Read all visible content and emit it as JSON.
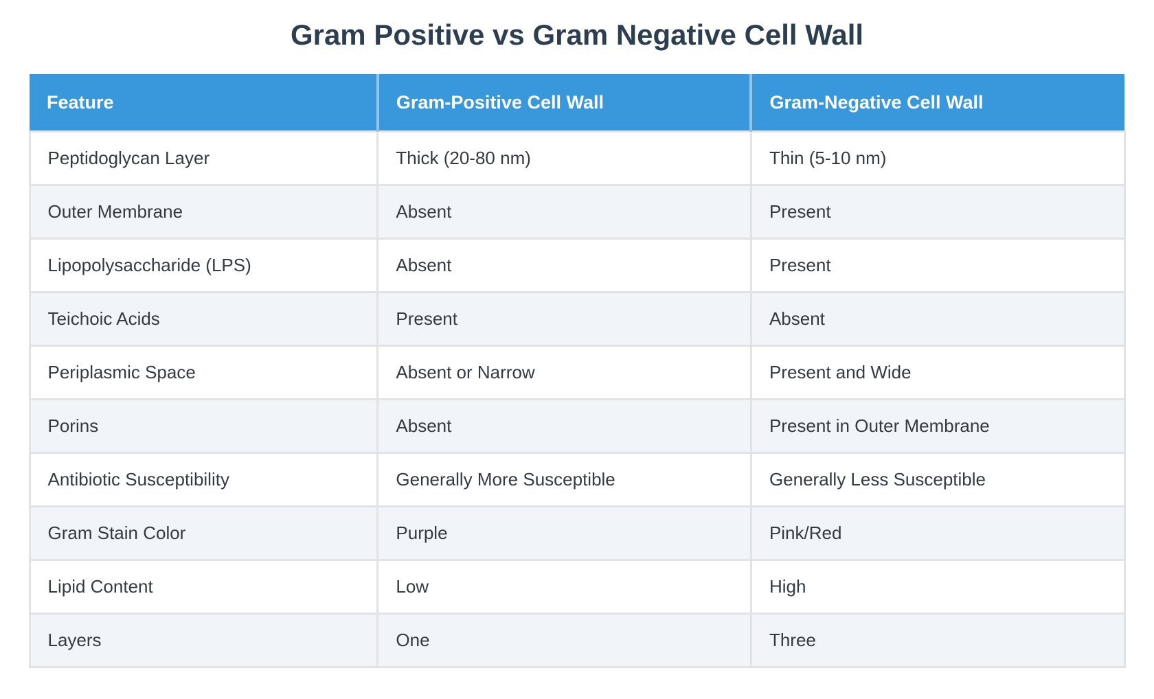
{
  "page": {
    "title": "Gram Positive vs Gram Negative Cell Wall",
    "background_color": "#ffffff"
  },
  "colors": {
    "title_text": "#2c3e50",
    "header_background": "#3998db",
    "header_text": "#ffffff",
    "body_text": "#343a40",
    "row_even_background": "#f1f5f9",
    "row_odd_background": "#ffffff",
    "border": "#e1e3e6"
  },
  "table": {
    "headers": [
      "Feature",
      "Gram-Positive Cell Wall",
      "Gram-Negative Cell Wall"
    ],
    "rows": [
      {
        "feature": "Peptidoglycan Layer",
        "gram_positive": "Thick (20-80 nm)",
        "gram_negative": "Thin (5-10 nm)"
      },
      {
        "feature": "Outer Membrane",
        "gram_positive": "Absent",
        "gram_negative": "Present"
      },
      {
        "feature": "Lipopolysaccharide (LPS)",
        "gram_positive": "Absent",
        "gram_negative": "Present"
      },
      {
        "feature": "Teichoic Acids",
        "gram_positive": "Present",
        "gram_negative": "Absent"
      },
      {
        "feature": "Periplasmic Space",
        "gram_positive": "Absent or Narrow",
        "gram_negative": "Present and Wide"
      },
      {
        "feature": "Porins",
        "gram_positive": "Absent",
        "gram_negative": "Present in Outer Membrane"
      },
      {
        "feature": "Antibiotic Susceptibility",
        "gram_positive": "Generally More Susceptible",
        "gram_negative": "Generally Less Susceptible"
      },
      {
        "feature": "Gram Stain Color",
        "gram_positive": "Purple",
        "gram_negative": "Pink/Red"
      },
      {
        "feature": "Lipid Content",
        "gram_positive": "Low",
        "gram_negative": "High"
      },
      {
        "feature": "Layers",
        "gram_positive": "One",
        "gram_negative": "Three"
      }
    ]
  },
  "chart_data": {
    "type": "table",
    "title": "Gram Positive vs Gram Negative Cell Wall",
    "columns": [
      "Feature",
      "Gram-Positive Cell Wall",
      "Gram-Negative Cell Wall"
    ],
    "rows": [
      [
        "Peptidoglycan Layer",
        "Thick (20-80 nm)",
        "Thin (5-10 nm)"
      ],
      [
        "Outer Membrane",
        "Absent",
        "Present"
      ],
      [
        "Lipopolysaccharide (LPS)",
        "Absent",
        "Present"
      ],
      [
        "Teichoic Acids",
        "Present",
        "Absent"
      ],
      [
        "Periplasmic Space",
        "Absent or Narrow",
        "Present and Wide"
      ],
      [
        "Porins",
        "Absent",
        "Present in Outer Membrane"
      ],
      [
        "Antibiotic Susceptibility",
        "Generally More Susceptible",
        "Generally Less Susceptible"
      ],
      [
        "Gram Stain Color",
        "Purple",
        "Pink/Red"
      ],
      [
        "Lipid Content",
        "Low",
        "High"
      ],
      [
        "Layers",
        "One",
        "Three"
      ]
    ],
    "layout": {
      "header_background": "#3998db",
      "zebra_striping": true,
      "grid": true
    }
  }
}
